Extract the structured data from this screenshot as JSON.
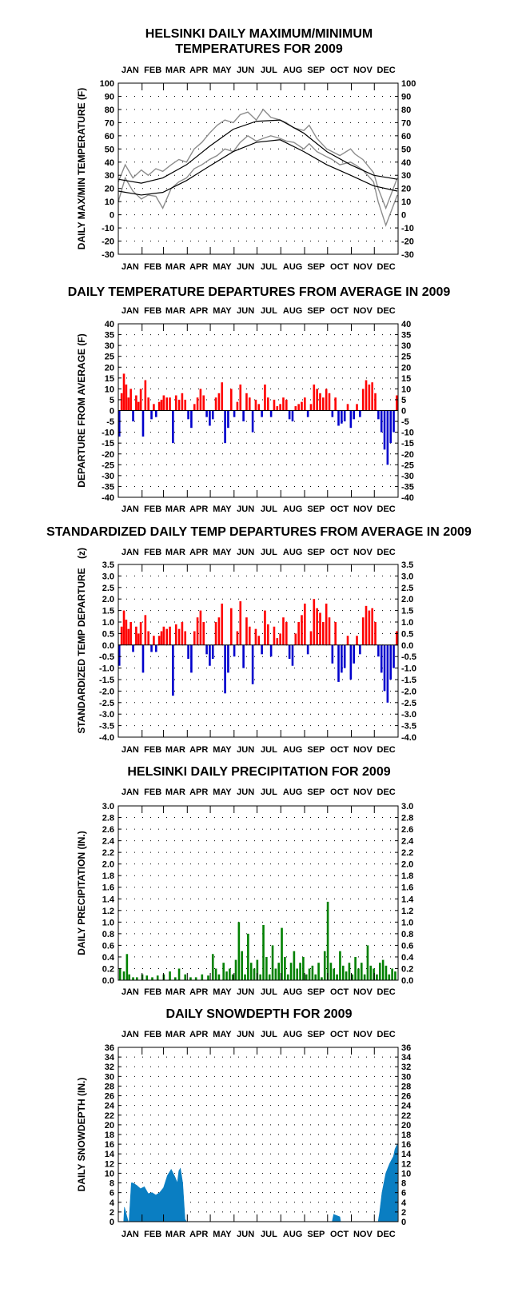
{
  "months": [
    "JAN",
    "FEB",
    "MAR",
    "APR",
    "MAY",
    "JUN",
    "JUL",
    "AUG",
    "SEP",
    "OCT",
    "NOV",
    "DEC"
  ],
  "charts": [
    {
      "title_lines": [
        "HELSINKI DAILY MAXIMUM/MINIMUM",
        "TEMPERATURES FOR 2009"
      ],
      "ylabel": "DAILY MAX/MIN TEMPERATURE (F)",
      "type": "line",
      "ylim": [
        -30,
        100
      ],
      "yticks": [
        -30,
        -20,
        -10,
        0,
        10,
        20,
        30,
        40,
        50,
        60,
        70,
        80,
        90,
        100
      ],
      "tick_labels": [
        "-30",
        "-20",
        "-10",
        "0",
        "10",
        "20",
        "30",
        "40",
        "50",
        "60",
        "70",
        "80",
        "90",
        "100"
      ],
      "series_colors": {
        "daily_max": "#8c8c8c",
        "daily_min": "#8c8c8c",
        "normal": "#000000"
      },
      "chart_data": {
        "type": "line",
        "x_unit": "day of year",
        "series": [
          {
            "key": "daily_max",
            "x": [
              1,
              10,
              20,
              31,
              40,
              50,
              59,
              70,
              80,
              90,
              100,
              110,
              120,
              130,
              140,
              151,
              160,
              170,
              181,
              190,
              200,
              212,
              220,
              230,
              243,
              250,
              260,
              273,
              280,
              290,
              304,
              310,
              320,
              334,
              340,
              350,
              365
            ],
            "values": [
              25,
              38,
              28,
              34,
              30,
              35,
              33,
              38,
              42,
              40,
              50,
              55,
              62,
              68,
              72,
              70,
              76,
              78,
              72,
              80,
              74,
              72,
              70,
              66,
              64,
              68,
              58,
              50,
              48,
              45,
              50,
              46,
              42,
              32,
              20,
              5,
              28
            ]
          },
          {
            "key": "daily_min",
            "x": [
              1,
              10,
              20,
              31,
              40,
              50,
              59,
              70,
              80,
              90,
              100,
              110,
              120,
              130,
              140,
              151,
              160,
              170,
              181,
              190,
              200,
              212,
              220,
              230,
              243,
              250,
              260,
              273,
              280,
              290,
              304,
              310,
              320,
              334,
              340,
              350,
              365
            ],
            "values": [
              10,
              28,
              18,
              12,
              15,
              14,
              5,
              20,
              25,
              28,
              35,
              38,
              42,
              45,
              50,
              48,
              55,
              60,
              56,
              58,
              60,
              58,
              56,
              55,
              50,
              54,
              48,
              44,
              42,
              38,
              40,
              38,
              34,
              25,
              10,
              -8,
              15
            ]
          },
          {
            "key": "normal_high",
            "x": [
              1,
              31,
              59,
              90,
              120,
              151,
              181,
              212,
              243,
              273,
              304,
              334,
              365
            ],
            "values": [
              27,
              24,
              28,
              38,
              52,
              65,
              71,
              72,
              62,
              48,
              38,
              30,
              27
            ]
          },
          {
            "key": "normal_low",
            "x": [
              1,
              31,
              59,
              90,
              120,
              151,
              181,
              212,
              243,
              273,
              304,
              334,
              365
            ],
            "values": [
              18,
              15,
              17,
              26,
              37,
              48,
              55,
              57,
              48,
              38,
              30,
              22,
              18
            ]
          }
        ]
      }
    },
    {
      "title_lines": [
        "DAILY TEMPERATURE DEPARTURES FROM AVERAGE IN 2009"
      ],
      "ylabel": "DEPARTURE FROM AVERAGE (F)",
      "type": "bar",
      "ylim": [
        -40,
        40
      ],
      "yticks": [
        -40,
        -35,
        -30,
        -25,
        -20,
        -15,
        -10,
        -5,
        0,
        5,
        10,
        15,
        20,
        25,
        30,
        35,
        40
      ],
      "tick_labels": [
        "-40",
        "-35",
        "-30",
        "-25",
        "-20",
        "-15",
        "-10",
        "-5",
        "0",
        "5",
        "10",
        "15",
        "20",
        "25",
        "30",
        "35",
        "40"
      ],
      "pos_color": "#ff0000",
      "neg_color": "#0000cc",
      "chart_data": {
        "type": "bar",
        "x_unit": "day of year",
        "x": [
          2,
          5,
          8,
          11,
          14,
          17,
          20,
          24,
          27,
          30,
          33,
          36,
          40,
          44,
          47,
          50,
          54,
          57,
          60,
          64,
          68,
          72,
          76,
          80,
          84,
          88,
          92,
          96,
          100,
          104,
          108,
          112,
          116,
          120,
          124,
          128,
          132,
          136,
          140,
          144,
          148,
          152,
          156,
          160,
          164,
          168,
          172,
          176,
          180,
          184,
          188,
          192,
          196,
          200,
          204,
          208,
          212,
          216,
          220,
          224,
          228,
          232,
          236,
          240,
          244,
          248,
          252,
          256,
          260,
          264,
          268,
          272,
          276,
          280,
          284,
          288,
          292,
          296,
          300,
          304,
          308,
          312,
          316,
          320,
          324,
          328,
          332,
          336,
          340,
          344,
          348,
          352,
          356,
          360,
          364
        ],
        "values": [
          -12,
          8,
          17,
          12,
          6,
          10,
          -5,
          7,
          4,
          10,
          -12,
          14,
          6,
          -4,
          3,
          -3,
          4,
          5,
          7,
          6,
          6,
          -15,
          7,
          5,
          8,
          5,
          -4,
          -8,
          3,
          6,
          10,
          7,
          -3,
          -7,
          -4,
          6,
          8,
          13,
          -15,
          -8,
          10,
          -3,
          4,
          12,
          -5,
          8,
          6,
          -10,
          5,
          3,
          -3,
          12,
          6,
          -3,
          5,
          2,
          3,
          6,
          5,
          -4,
          -5,
          2,
          3,
          4,
          6,
          -3,
          3,
          12,
          10,
          8,
          6,
          10,
          8,
          -3,
          6,
          -7,
          -6,
          -5,
          3,
          -8,
          -4,
          3,
          -3,
          10,
          14,
          12,
          13,
          8,
          -4,
          -10,
          -18,
          -25,
          -15,
          -10,
          7
        ]
      }
    },
    {
      "title_lines": [
        "STANDARDIZED DAILY TEMP DEPARTURES FROM AVERAGE IN 2009"
      ],
      "ylabel": "STANDARDIZED TEMP DEPARTURE",
      "ylabel_unit": "(z)",
      "type": "bar",
      "ylim": [
        -4.0,
        3.5
      ],
      "yticks": [
        -4.0,
        -3.5,
        -3.0,
        -2.5,
        -2.0,
        -1.5,
        -1.0,
        -0.5,
        0.0,
        0.5,
        1.0,
        1.5,
        2.0,
        2.5,
        3.0,
        3.5
      ],
      "tick_labels": [
        "-4.0",
        "-3.5",
        "-3.0",
        "-2.5",
        "-2.0",
        "-1.5",
        "-1.0",
        "-0.5",
        "0.0",
        "0.5",
        "1.0",
        "1.5",
        "2.0",
        "2.5",
        "3.0",
        "3.5"
      ],
      "pos_color": "#ff0000",
      "neg_color": "#0000cc",
      "chart_data": {
        "type": "bar",
        "x_unit": "day of year",
        "x": [
          2,
          5,
          8,
          11,
          14,
          17,
          20,
          24,
          27,
          30,
          33,
          36,
          40,
          44,
          47,
          50,
          54,
          57,
          60,
          64,
          68,
          72,
          76,
          80,
          84,
          88,
          92,
          96,
          100,
          104,
          108,
          112,
          116,
          120,
          124,
          128,
          132,
          136,
          140,
          144,
          148,
          152,
          156,
          160,
          164,
          168,
          172,
          176,
          180,
          184,
          188,
          192,
          196,
          200,
          204,
          208,
          212,
          216,
          220,
          224,
          228,
          232,
          236,
          240,
          244,
          248,
          252,
          256,
          260,
          264,
          268,
          272,
          276,
          280,
          284,
          288,
          292,
          296,
          300,
          304,
          308,
          312,
          316,
          320,
          324,
          328,
          332,
          336,
          340,
          344,
          348,
          352,
          356,
          360,
          364
        ],
        "values": [
          -0.9,
          0.8,
          1.5,
          1.1,
          0.7,
          1.0,
          -0.3,
          0.8,
          0.5,
          1.0,
          -1.2,
          1.3,
          0.6,
          -0.3,
          0.4,
          -0.3,
          0.4,
          0.6,
          0.8,
          0.7,
          0.8,
          -2.2,
          0.9,
          0.7,
          1.0,
          0.6,
          -0.6,
          -1.2,
          0.6,
          1.2,
          1.5,
          1.0,
          -0.4,
          -0.9,
          -0.6,
          1.0,
          1.2,
          1.8,
          -2.1,
          -1.2,
          1.6,
          -0.5,
          0.6,
          1.9,
          -1.0,
          1.2,
          0.8,
          -1.7,
          0.7,
          0.4,
          -0.4,
          1.5,
          0.9,
          -0.5,
          0.8,
          0.3,
          0.5,
          1.2,
          1.0,
          -0.6,
          -0.9,
          0.5,
          1.0,
          1.3,
          1.8,
          -0.4,
          0.6,
          2.0,
          1.6,
          1.4,
          1.0,
          1.8,
          1.2,
          -0.8,
          1.0,
          -1.6,
          -1.2,
          -1.0,
          0.4,
          -1.5,
          -0.8,
          0.4,
          -0.4,
          1.2,
          1.7,
          1.5,
          1.6,
          1.0,
          -0.5,
          -1.2,
          -2.0,
          -2.5,
          -1.5,
          -1.0,
          0.6
        ]
      }
    },
    {
      "title_lines": [
        "HELSINKI DAILY PRECIPITATION FOR 2009"
      ],
      "ylabel": "DAILY PRECIPITATION (IN.)",
      "type": "bar",
      "ylim": [
        0,
        3.0
      ],
      "yticks": [
        0.0,
        0.2,
        0.4,
        0.6,
        0.8,
        1.0,
        1.2,
        1.4,
        1.6,
        1.8,
        2.0,
        2.2,
        2.4,
        2.6,
        2.8,
        3.0
      ],
      "tick_labels": [
        "0.0",
        "0.2",
        "0.4",
        "0.6",
        "0.8",
        "1.0",
        "1.2",
        "1.4",
        "1.6",
        "1.8",
        "2.0",
        "2.2",
        "2.4",
        "2.6",
        "2.8",
        "3.0"
      ],
      "bar_color": "#008000",
      "chart_data": {
        "type": "bar",
        "x_unit": "day of year",
        "x": [
          3,
          8,
          12,
          15,
          20,
          25,
          32,
          38,
          45,
          52,
          60,
          68,
          75,
          80,
          88,
          95,
          102,
          110,
          118,
          124,
          128,
          132,
          138,
          142,
          146,
          150,
          154,
          158,
          162,
          166,
          170,
          174,
          178,
          182,
          186,
          190,
          194,
          198,
          202,
          206,
          210,
          214,
          218,
          222,
          226,
          230,
          234,
          238,
          242,
          246,
          250,
          254,
          258,
          262,
          266,
          270,
          274,
          278,
          282,
          286,
          290,
          294,
          298,
          302,
          306,
          310,
          314,
          318,
          322,
          326,
          330,
          334,
          338,
          342,
          346,
          350,
          354,
          358,
          362
        ],
        "values": [
          0.2,
          0.15,
          0.45,
          0.1,
          0.05,
          0.05,
          0.1,
          0.08,
          0.05,
          0.08,
          0.1,
          0.15,
          0.05,
          0.2,
          0.1,
          0.05,
          0.05,
          0.1,
          0.08,
          0.45,
          0.2,
          0.1,
          0.3,
          0.15,
          0.2,
          0.1,
          0.35,
          1.0,
          0.5,
          0.1,
          0.8,
          0.3,
          0.2,
          0.35,
          0.1,
          0.95,
          0.4,
          0.1,
          0.6,
          0.2,
          0.3,
          0.9,
          0.4,
          0.1,
          0.3,
          0.5,
          0.2,
          0.3,
          0.4,
          0.1,
          0.2,
          0.25,
          0.1,
          0.3,
          0.05,
          0.5,
          1.35,
          0.3,
          0.2,
          0.1,
          0.5,
          0.25,
          0.15,
          0.3,
          0.1,
          0.4,
          0.2,
          0.3,
          0.1,
          0.6,
          0.25,
          0.2,
          0.1,
          0.3,
          0.35,
          0.25,
          0.1,
          0.2,
          0.15
        ]
      }
    },
    {
      "title_lines": [
        "DAILY SNOWDEPTH FOR 2009"
      ],
      "ylabel": "DAILY SNOWDEPTH (IN.)",
      "type": "area",
      "ylim": [
        0,
        36
      ],
      "yticks": [
        0,
        2,
        4,
        6,
        8,
        10,
        12,
        14,
        16,
        18,
        20,
        22,
        24,
        26,
        28,
        30,
        32,
        34,
        36
      ],
      "tick_labels": [
        "0",
        "2",
        "4",
        "6",
        "8",
        "10",
        "12",
        "14",
        "16",
        "18",
        "20",
        "22",
        "24",
        "26",
        "28",
        "30",
        "32",
        "34",
        "36"
      ],
      "bar_color": "#0a7ec2",
      "chart_data": {
        "type": "area",
        "x_unit": "day of year",
        "x": [
          1,
          8,
          9,
          14,
          15,
          18,
          20,
          25,
          30,
          35,
          40,
          45,
          50,
          55,
          60,
          65,
          70,
          75,
          78,
          80,
          82,
          85,
          88,
          90,
          91,
          280,
          282,
          290,
          291,
          340,
          342,
          345,
          350,
          355,
          360,
          362,
          365
        ],
        "values": [
          0,
          0,
          3,
          0,
          0,
          8,
          8,
          7.5,
          6.8,
          7.2,
          5.8,
          6,
          5.5,
          6,
          7,
          9.5,
          10.8,
          9.2,
          8,
          10.5,
          11,
          8,
          0.5,
          0,
          0,
          0,
          1.5,
          1,
          0,
          0,
          2,
          6,
          10,
          12,
          13.5,
          15,
          16
        ]
      }
    }
  ]
}
